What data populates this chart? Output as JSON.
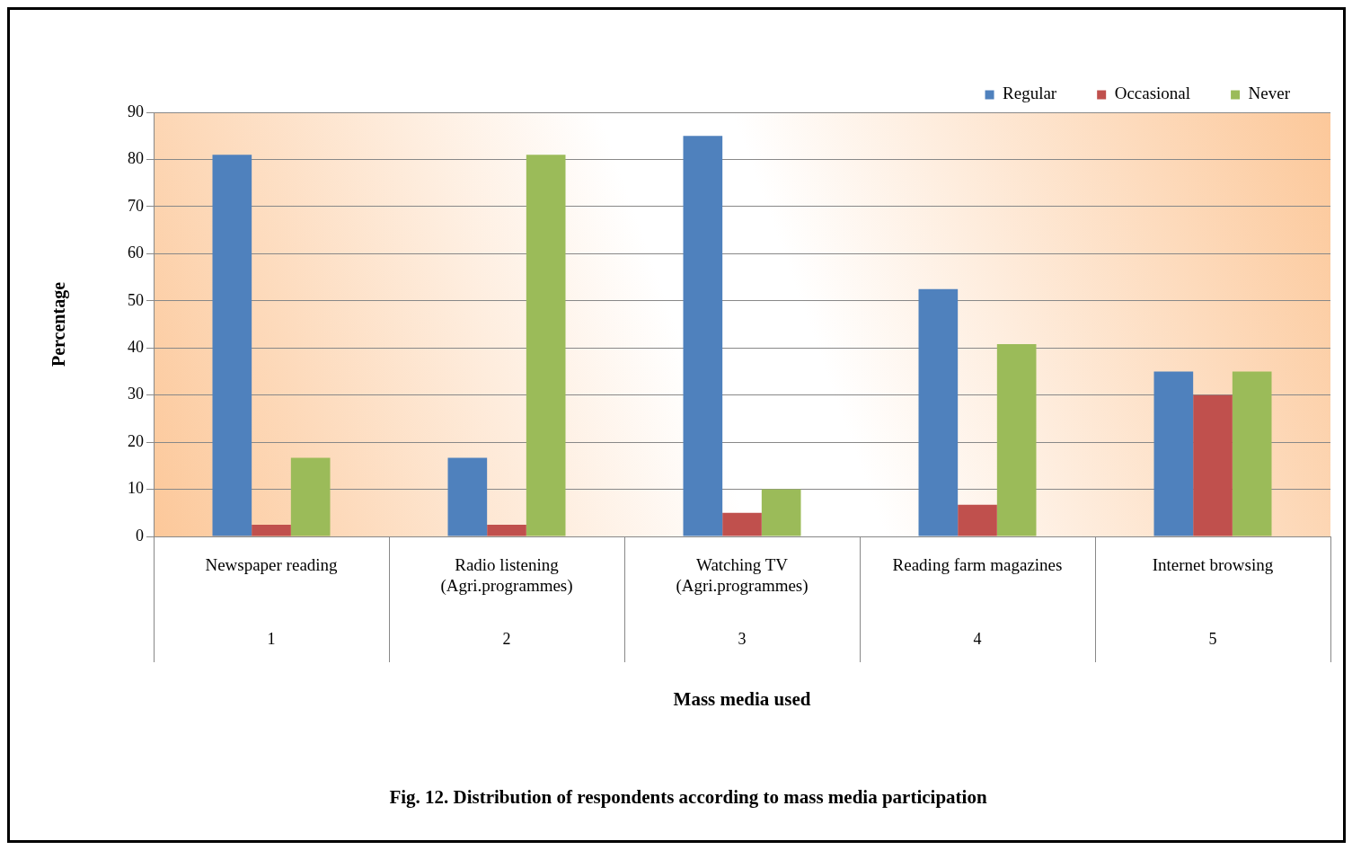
{
  "chart_data": {
    "type": "bar",
    "title": "Fig. 12. Distribution of respondents according to mass media participation",
    "xlabel": "Mass media used",
    "ylabel": "Percentage",
    "categories": [
      "Newspaper reading",
      "Radio listening (Agri.programmes)",
      "Watching TV (Agri.programmes)",
      "Reading farm magazines",
      "Internet browsing"
    ],
    "series": [
      {
        "name": "Regular",
        "color": "#4f81bd",
        "values": [
          81,
          16.7,
          85,
          52.5,
          35
        ]
      },
      {
        "name": "Occasional",
        "color": "#c0504d",
        "values": [
          2.5,
          2.5,
          5,
          6.7,
          30
        ]
      },
      {
        "name": "Never",
        "color": "#9bbb59",
        "values": [
          16.7,
          81,
          10,
          40.8,
          35
        ]
      }
    ],
    "annotations": [
      "1",
      "2",
      "3",
      "4",
      "5"
    ],
    "ylim": [
      0,
      90
    ],
    "yticks": [
      0,
      10,
      20,
      30,
      40,
      50,
      60,
      70,
      80,
      90
    ],
    "grid": "y",
    "legend": "top right"
  }
}
